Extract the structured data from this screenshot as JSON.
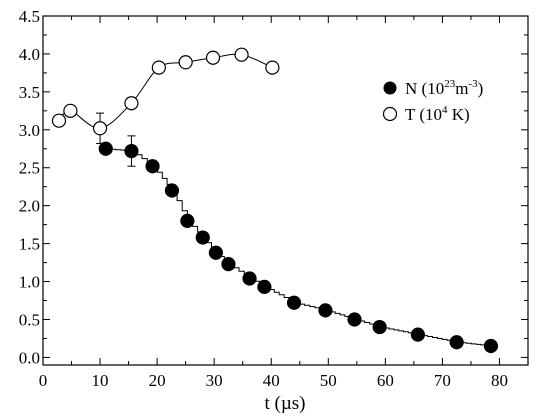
{
  "chart_data": {
    "type": "scatter",
    "xlabel": "t (µs)",
    "ylabel": "",
    "xlim": [
      0,
      85
    ],
    "ylim": [
      -0.1,
      4.5
    ],
    "xticks": [
      "0",
      "10",
      "20",
      "30",
      "40",
      "50",
      "60",
      "70",
      "80"
    ],
    "yticks": [
      "0.0",
      "0.5",
      "1.0",
      "1.5",
      "2.0",
      "2.5",
      "3.0",
      "3.5",
      "4.0",
      "4.5"
    ],
    "grid": false,
    "legend_position": "right",
    "series": [
      {
        "name": "N (10",
        "name_sup1": "23",
        "name_mid": "m",
        "name_sup2": "-3",
        "name_end": ")",
        "marker": "filled-circle",
        "line": "stepped",
        "x": [
          11,
          15.5,
          19.2,
          22.6,
          25.3,
          28,
          30.3,
          32.5,
          36.2,
          38.8,
          44,
          49.5,
          54.6,
          59,
          65.7,
          72.5,
          78.5
        ],
        "y": [
          2.75,
          2.72,
          2.52,
          2.2,
          1.8,
          1.58,
          1.38,
          1.23,
          1.04,
          0.93,
          0.72,
          0.62,
          0.5,
          0.4,
          0.3,
          0.2,
          0.15
        ],
        "yerr": [
          0,
          0.2,
          0,
          0,
          0,
          0,
          0,
          0,
          0,
          0,
          0,
          0,
          0,
          0,
          0,
          0,
          0
        ]
      },
      {
        "name": "T (10",
        "name_sup1": "4",
        "name_mid": " K)",
        "name_sup2": "",
        "name_end": "",
        "marker": "open-circle",
        "line": "smooth",
        "x": [
          2.8,
          4.8,
          10,
          15.5,
          20.3,
          25,
          29.8,
          34.8,
          40.2
        ],
        "y": [
          3.12,
          3.25,
          3.02,
          3.35,
          3.82,
          3.89,
          3.95,
          3.99,
          3.82
        ],
        "yerr": [
          0,
          0,
          0.2,
          0,
          0,
          0,
          0,
          0,
          0
        ]
      }
    ]
  }
}
